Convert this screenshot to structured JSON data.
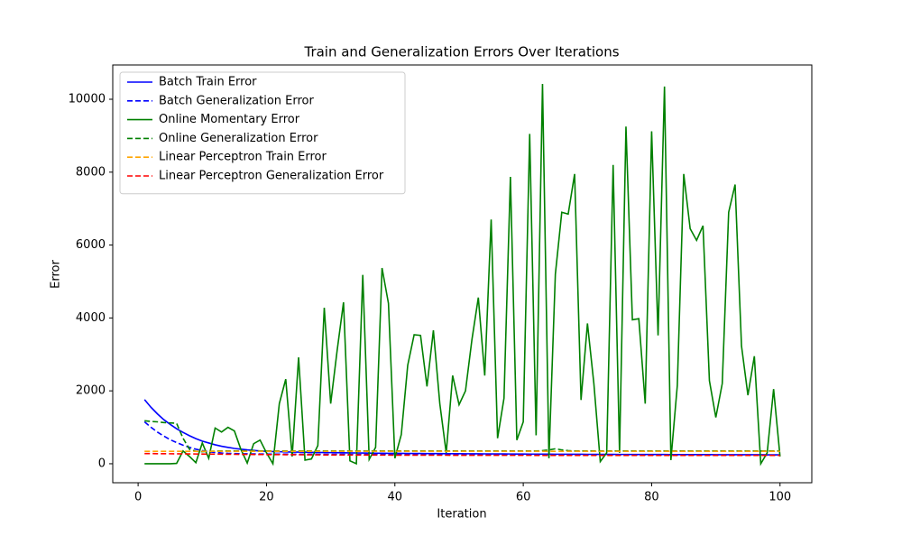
{
  "chart_data": {
    "type": "line",
    "title": "Train and Generalization Errors Over Iterations",
    "x_label": "Iteration",
    "y_label": "Error",
    "xlim": [
      -3.95,
      104.95
    ],
    "xticks": [
      0,
      20,
      40,
      60,
      80,
      100
    ],
    "ylim": [
      -521,
      10941
    ],
    "yticks": [
      0,
      2000,
      4000,
      6000,
      8000,
      10000
    ],
    "legend": "upper left",
    "x": [
      1,
      2,
      3,
      4,
      5,
      6,
      7,
      8,
      9,
      10,
      11,
      12,
      13,
      14,
      15,
      16,
      17,
      18,
      19,
      20,
      21,
      22,
      23,
      24,
      25,
      26,
      27,
      28,
      29,
      30,
      31,
      32,
      33,
      34,
      35,
      36,
      37,
      38,
      39,
      40,
      41,
      42,
      43,
      44,
      45,
      46,
      47,
      48,
      49,
      50,
      51,
      52,
      53,
      54,
      55,
      56,
      57,
      58,
      59,
      60,
      61,
      62,
      63,
      64,
      65,
      66,
      67,
      68,
      69,
      70,
      71,
      72,
      73,
      74,
      75,
      76,
      77,
      78,
      79,
      80,
      81,
      82,
      83,
      84,
      85,
      86,
      87,
      88,
      89,
      90,
      91,
      92,
      93,
      94,
      95,
      96,
      97,
      98,
      99,
      100
    ],
    "series": [
      {
        "name": "Batch Train Error",
        "color": "#0000ff",
        "dash": false,
        "values": [
          1760,
          1550,
          1370,
          1210,
          1080,
          960,
          860,
          770,
          690,
          620,
          570,
          520,
          480,
          450,
          420,
          400,
          380,
          365,
          350,
          340,
          335,
          330,
          325,
          320,
          318,
          315,
          312,
          310,
          308,
          305,
          303,
          300,
          298,
          296,
          294,
          292,
          290,
          288,
          286,
          285,
          284,
          283,
          282,
          281,
          280,
          279,
          278,
          277,
          276,
          275,
          274,
          273,
          272,
          271,
          270,
          270,
          269,
          268,
          267,
          266,
          265,
          265,
          264,
          263,
          262,
          262,
          261,
          260,
          260,
          259,
          258,
          258,
          257,
          257,
          256,
          256,
          255,
          255,
          254,
          254,
          253,
          253,
          252,
          252,
          251,
          251,
          250,
          250,
          250,
          249,
          249,
          248,
          248,
          248,
          247,
          247,
          247,
          246,
          246,
          246
        ]
      },
      {
        "name": "Batch Generalization Error",
        "color": "#0000ff",
        "dash": true,
        "values": [
          1150,
          1000,
          870,
          760,
          660,
          580,
          510,
          450,
          400,
          360,
          330,
          310,
          295,
          285,
          280,
          275,
          272,
          270,
          268,
          266,
          265,
          264,
          263,
          262,
          261,
          260,
          260,
          259,
          258,
          258,
          257,
          257,
          256,
          256,
          255,
          255,
          254,
          254,
          253,
          253,
          252,
          252,
          251,
          251,
          250,
          250,
          250,
          249,
          249,
          248,
          248,
          248,
          247,
          247,
          247,
          246,
          246,
          246,
          245,
          245,
          245,
          244,
          244,
          244,
          243,
          243,
          243,
          242,
          242,
          242,
          242,
          241,
          241,
          241,
          241,
          240,
          240,
          240,
          240,
          240,
          239,
          239,
          239,
          239,
          239,
          238,
          238,
          238,
          238,
          238,
          237,
          237,
          237,
          237,
          237,
          236,
          236,
          236,
          236,
          236
        ]
      },
      {
        "name": "Online Momentary Error",
        "color": "#008000",
        "dash": false,
        "values": [
          0,
          0,
          0,
          0,
          0,
          10,
          350,
          200,
          30,
          570,
          150,
          980,
          870,
          1000,
          900,
          400,
          20,
          550,
          650,
          300,
          0,
          1650,
          2320,
          200,
          2920,
          100,
          130,
          500,
          4280,
          1650,
          3100,
          4430,
          80,
          0,
          5180,
          120,
          450,
          5370,
          4400,
          150,
          800,
          2700,
          3540,
          3520,
          2120,
          3660,
          1650,
          300,
          2420,
          1620,
          2000,
          3400,
          4560,
          2420,
          6700,
          700,
          1800,
          7870,
          650,
          1150,
          9050,
          780,
          10420,
          150,
          5200,
          6900,
          6850,
          7950,
          1750,
          3850,
          2200,
          60,
          300,
          8200,
          300,
          9250,
          3950,
          3980,
          1650,
          9120,
          3520,
          10350,
          100,
          2150,
          7950,
          6450,
          6130,
          6530,
          2280,
          1270,
          2200,
          6900,
          7660,
          3230,
          1880,
          2950,
          0,
          300,
          2050,
          200
        ]
      },
      {
        "name": "Online Generalization Error",
        "color": "#008000",
        "dash": true,
        "values": [
          1180,
          1160,
          1150,
          1130,
          1120,
          1110,
          700,
          400,
          340,
          330,
          340,
          345,
          350,
          350,
          350,
          350,
          350,
          350,
          350,
          350,
          350,
          350,
          350,
          350,
          350,
          350,
          350,
          350,
          350,
          350,
          350,
          350,
          350,
          350,
          350,
          350,
          350,
          350,
          350,
          350,
          350,
          350,
          350,
          350,
          350,
          350,
          350,
          350,
          350,
          350,
          350,
          350,
          350,
          350,
          350,
          350,
          350,
          350,
          350,
          350,
          350,
          350,
          360,
          380,
          410,
          380,
          360,
          350,
          350,
          350,
          350,
          350,
          350,
          350,
          350,
          350,
          350,
          350,
          350,
          350,
          350,
          350,
          350,
          350,
          350,
          350,
          350,
          350,
          350,
          350,
          350,
          350,
          350,
          350,
          350,
          350,
          350,
          350,
          350,
          350
        ]
      },
      {
        "name": "Linear Perceptron Train Error",
        "color": "#ffa500",
        "dash": true,
        "values": [
          340,
          340,
          340,
          340,
          340,
          340,
          340,
          340,
          340,
          340,
          340,
          340,
          340,
          340,
          340,
          340,
          340,
          340,
          340,
          340,
          340,
          340,
          340,
          340,
          340,
          340,
          340,
          340,
          340,
          340,
          340,
          340,
          340,
          340,
          340,
          340,
          340,
          340,
          340,
          340,
          340,
          340,
          340,
          340,
          340,
          340,
          340,
          340,
          340,
          340,
          340,
          340,
          340,
          340,
          340,
          340,
          340,
          340,
          340,
          340,
          340,
          340,
          340,
          340,
          340,
          340,
          340,
          340,
          340,
          340,
          340,
          340,
          340,
          340,
          340,
          340,
          340,
          340,
          340,
          340,
          340,
          340,
          340,
          340,
          340,
          340,
          340,
          340,
          340,
          340,
          340,
          340,
          340,
          340,
          340,
          340,
          340,
          340,
          340,
          340
        ]
      },
      {
        "name": "Linear Perceptron Generalization Error",
        "color": "#ff0000",
        "dash": true,
        "values": [
          280,
          278,
          277,
          275,
          274,
          272,
          271,
          269,
          268,
          266,
          265,
          263,
          262,
          260,
          259,
          257,
          256,
          255,
          253,
          252,
          251,
          250,
          249,
          248,
          247,
          246,
          245,
          244,
          243,
          242,
          241,
          240,
          240,
          239,
          239,
          238,
          238,
          237,
          237,
          236,
          236,
          236,
          235,
          235,
          235,
          234,
          234,
          234,
          233,
          233,
          233,
          233,
          232,
          232,
          232,
          232,
          231,
          231,
          231,
          231,
          231,
          230,
          230,
          230,
          230,
          230,
          230,
          230,
          230,
          230,
          230,
          230,
          230,
          230,
          230,
          230,
          230,
          230,
          230,
          230,
          230,
          230,
          230,
          230,
          230,
          230,
          230,
          230,
          230,
          230,
          230,
          230,
          230,
          230,
          230,
          230,
          230,
          230,
          230,
          230
        ]
      }
    ]
  }
}
